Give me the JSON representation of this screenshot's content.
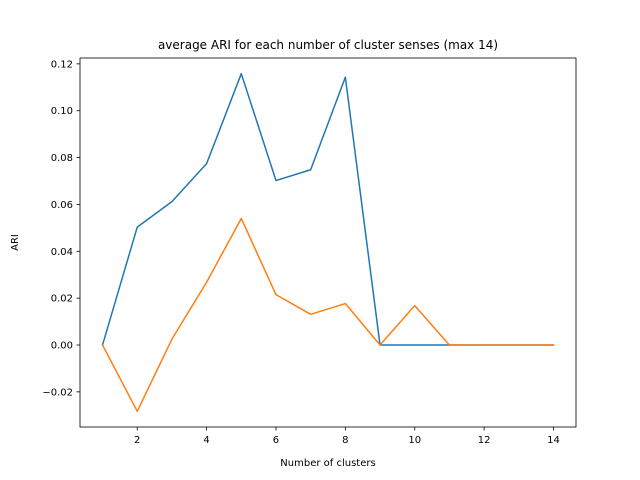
{
  "chart_data": {
    "type": "line",
    "title": "average ARI for each number of cluster senses (max 14)",
    "xlabel": "Number of clusters",
    "ylabel": "ARI",
    "xlim": [
      0.35,
      14.65
    ],
    "ylim": [
      -0.035,
      0.1225
    ],
    "xticks": [
      2,
      4,
      6,
      8,
      10,
      12,
      14
    ],
    "xtick_labels": [
      "2",
      "4",
      "6",
      "8",
      "10",
      "12",
      "14"
    ],
    "yticks": [
      -0.02,
      0.0,
      0.02,
      0.04,
      0.06,
      0.08,
      0.1,
      0.12
    ],
    "ytick_labels": [
      "−0.02",
      "0.00",
      "0.02",
      "0.04",
      "0.06",
      "0.08",
      "0.10",
      "0.12"
    ],
    "grid": false,
    "x": [
      1,
      2,
      3,
      4,
      5,
      6,
      7,
      8,
      9,
      10,
      11,
      12,
      13,
      14
    ],
    "series": [
      {
        "color": "#1f77b4",
        "values": [
          0.0,
          0.0503,
          0.0612,
          0.0774,
          0.1158,
          0.0702,
          0.0748,
          0.1143,
          0.0,
          0.0,
          0.0,
          0.0,
          0.0,
          0.0
        ]
      },
      {
        "color": "#ff7f0e",
        "values": [
          0.0,
          -0.0283,
          0.0025,
          0.0268,
          0.054,
          0.0215,
          0.0131,
          0.0177,
          0.0,
          0.0168,
          0.0,
          0.0,
          0.0,
          0.0
        ]
      }
    ]
  }
}
